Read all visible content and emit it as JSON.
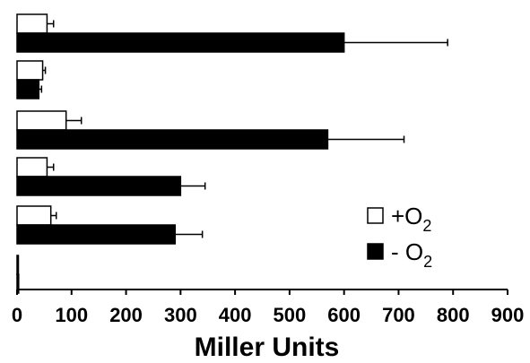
{
  "chart_data": {
    "type": "bar",
    "orientation": "horizontal",
    "title": "",
    "xlabel": "Miller Units",
    "ylabel": "",
    "xlim": [
      0,
      900
    ],
    "x_ticks": [
      "0",
      "100",
      "200",
      "300",
      "400",
      "500",
      "600",
      "700",
      "800",
      "900"
    ],
    "grid": false,
    "legend_position": "right",
    "categories": [
      "",
      "",
      "",
      "",
      "",
      ""
    ],
    "series": [
      {
        "name": "+O2",
        "legend_main": "+O",
        "legend_sub": "2",
        "fill": "#ffffff",
        "values": [
          55,
          47,
          90,
          55,
          62,
          2
        ],
        "errors": [
          12,
          5,
          28,
          12,
          10,
          0
        ]
      },
      {
        "name": "- O2",
        "legend_main": "- O",
        "legend_sub": "2",
        "fill": "#000000",
        "values": [
          600,
          40,
          570,
          300,
          290,
          3
        ],
        "errors": [
          190,
          5,
          140,
          45,
          50,
          0
        ]
      }
    ]
  }
}
